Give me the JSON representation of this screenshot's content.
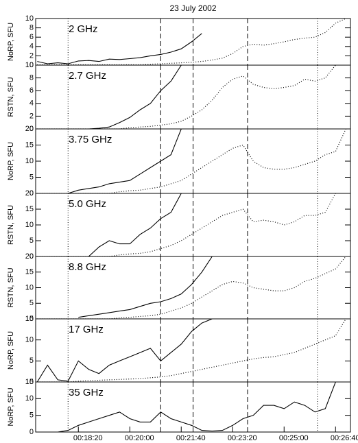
{
  "chart_data": [
    {
      "type": "line",
      "title": "23 July 2002",
      "label": "2 GHz",
      "ylabel": "NoRP, SFU",
      "x": [
        1020,
        1040,
        1060,
        1080,
        1100,
        1120,
        1140,
        1160,
        1180,
        1200,
        1220,
        1240,
        1260,
        1280,
        1300,
        1320,
        1340,
        1360,
        1380,
        1400,
        1420,
        1440,
        1460,
        1480,
        1500,
        1520,
        1540,
        1560,
        1580,
        1600,
        1620
      ],
      "series": [
        {
          "style": "solid",
          "color": "#000000",
          "values": [
            0.8,
            0.3,
            0.5,
            0.3,
            0.9,
            1.0,
            0.8,
            1.3,
            1.2,
            1.4,
            1.6,
            2.0,
            2.3,
            2.8,
            3.5,
            5.0,
            6.8,
            null,
            null,
            null,
            null,
            null,
            null,
            null,
            null,
            null,
            null,
            null,
            null,
            null,
            null
          ]
        },
        {
          "style": "dotted",
          "color": "#000000",
          "values": [
            0.1,
            0.1,
            0.1,
            0.1,
            0.1,
            0.1,
            0.1,
            0.1,
            0.1,
            0.1,
            0.1,
            0.2,
            0.3,
            0.4,
            0.5,
            0.6,
            0.8,
            1.1,
            1.5,
            2.5,
            4.0,
            4.5,
            4.3,
            4.6,
            5.0,
            5.5,
            5.8,
            6.0,
            7.0,
            9.0,
            10
          ]
        }
      ],
      "xlim": [
        1017,
        1629
      ],
      "ylim": [
        0,
        10
      ],
      "yticks": [
        0,
        2,
        4,
        6,
        8,
        10
      ],
      "vlines": [
        {
          "value": 1080,
          "style": "dotted"
        },
        {
          "value": 1260,
          "style": "dashed"
        },
        {
          "value": 1323,
          "style": "dashed"
        },
        {
          "value": 1429,
          "style": "dashed"
        },
        {
          "value": 1565,
          "style": "dotted"
        }
      ]
    },
    {
      "type": "line",
      "label": "2.7 GHz",
      "ylabel": "RSTN, SFU",
      "x": [
        1020,
        1040,
        1060,
        1080,
        1100,
        1120,
        1140,
        1160,
        1180,
        1200,
        1220,
        1240,
        1260,
        1280,
        1300,
        1320,
        1340,
        1360,
        1380,
        1400,
        1420,
        1440,
        1460,
        1480,
        1500,
        1520,
        1540,
        1560,
        1580,
        1600,
        1620
      ],
      "series": [
        {
          "style": "solid",
          "color": "#000000",
          "values": [
            0,
            0,
            0,
            0,
            0,
            0,
            0.1,
            0.3,
            1.0,
            1.8,
            3.0,
            4.0,
            6.0,
            7.5,
            10,
            null,
            null,
            null,
            null,
            null,
            null,
            null,
            null,
            null,
            null,
            null,
            null,
            null,
            null,
            null,
            null
          ]
        },
        {
          "style": "dotted",
          "color": "#000000",
          "values": [
            0,
            0,
            0,
            0,
            0,
            0,
            0,
            0,
            0,
            0.2,
            0.3,
            0.4,
            0.6,
            0.8,
            1.2,
            2.0,
            3.0,
            4.5,
            6.5,
            7.8,
            8.3,
            7.0,
            6.5,
            6.3,
            6.5,
            6.8,
            7.8,
            7.5,
            8.0,
            10,
            null
          ]
        }
      ],
      "xlim": [
        1017,
        1629
      ],
      "ylim": [
        0,
        10
      ],
      "yticks": [
        0,
        2,
        4,
        6,
        8,
        10
      ],
      "vlines": [
        {
          "value": 1080,
          "style": "dotted"
        },
        {
          "value": 1260,
          "style": "dashed"
        },
        {
          "value": 1323,
          "style": "dashed"
        },
        {
          "value": 1429,
          "style": "dashed"
        },
        {
          "value": 1565,
          "style": "dotted"
        }
      ]
    },
    {
      "type": "line",
      "label": "3.75 GHz",
      "ylabel": "NoRP, SFU",
      "x": [
        1020,
        1040,
        1060,
        1080,
        1100,
        1120,
        1140,
        1160,
        1180,
        1200,
        1220,
        1240,
        1260,
        1280,
        1300,
        1320,
        1340,
        1360,
        1380,
        1400,
        1420,
        1440,
        1460,
        1480,
        1500,
        1520,
        1540,
        1560,
        1580,
        1600,
        1620
      ],
      "series": [
        {
          "style": "solid",
          "color": "#000000",
          "values": [
            0,
            0,
            0,
            0,
            1,
            1.5,
            2,
            3,
            3.5,
            4,
            6,
            8,
            10,
            12,
            20,
            null,
            null,
            null,
            null,
            null,
            null,
            null,
            null,
            null,
            null,
            null,
            null,
            null,
            null,
            null,
            null
          ]
        },
        {
          "style": "dotted",
          "color": "#000000",
          "values": [
            0,
            0,
            0,
            0,
            0,
            0,
            0,
            0,
            0.5,
            0.8,
            1,
            1.5,
            2,
            3,
            4,
            6,
            8,
            10,
            12,
            14,
            15,
            10,
            8,
            7.5,
            7.5,
            8,
            9,
            10,
            12,
            13,
            20
          ]
        }
      ],
      "xlim": [
        1017,
        1629
      ],
      "ylim": [
        0,
        20
      ],
      "yticks": [
        0,
        5,
        10,
        15,
        20
      ],
      "vlines": [
        {
          "value": 1080,
          "style": "dotted"
        },
        {
          "value": 1260,
          "style": "dashed"
        },
        {
          "value": 1323,
          "style": "dashed"
        },
        {
          "value": 1429,
          "style": "dashed"
        },
        {
          "value": 1565,
          "style": "dotted"
        }
      ]
    },
    {
      "type": "line",
      "label": "5.0 GHz",
      "ylabel": "RSTN, SFU",
      "x": [
        1020,
        1040,
        1060,
        1080,
        1100,
        1120,
        1140,
        1160,
        1180,
        1200,
        1220,
        1240,
        1260,
        1280,
        1300,
        1320,
        1340,
        1360,
        1380,
        1400,
        1420,
        1440,
        1460,
        1480,
        1500,
        1520,
        1540,
        1560,
        1580,
        1600,
        1620
      ],
      "series": [
        {
          "style": "solid",
          "color": "#000000",
          "values": [
            null,
            null,
            null,
            null,
            null,
            0,
            3,
            5,
            4,
            4,
            7,
            9,
            12,
            14,
            20,
            null,
            null,
            null,
            null,
            null,
            null,
            null,
            null,
            null,
            null,
            null,
            null,
            null,
            null,
            null,
            null
          ]
        },
        {
          "style": "dotted",
          "color": "#000000",
          "values": [
            0,
            0,
            0,
            0,
            0,
            0,
            0,
            0,
            0.5,
            0.8,
            1,
            1.5,
            2.5,
            3.5,
            5,
            7,
            9,
            11,
            13,
            14,
            15,
            11,
            11.5,
            11,
            10,
            11,
            13,
            13,
            14,
            20,
            null
          ]
        }
      ],
      "xlim": [
        1017,
        1629
      ],
      "ylim": [
        0,
        20
      ],
      "yticks": [
        0,
        5,
        10,
        15,
        20
      ],
      "vlines": [
        {
          "value": 1080,
          "style": "dotted"
        },
        {
          "value": 1260,
          "style": "dashed"
        },
        {
          "value": 1323,
          "style": "dashed"
        },
        {
          "value": 1429,
          "style": "dashed"
        },
        {
          "value": 1565,
          "style": "dotted"
        }
      ]
    },
    {
      "type": "line",
      "label": "8.8 GHz",
      "ylabel": "RSTN, SFU",
      "x": [
        1020,
        1040,
        1060,
        1080,
        1100,
        1120,
        1140,
        1160,
        1180,
        1200,
        1220,
        1240,
        1260,
        1280,
        1300,
        1320,
        1340,
        1360,
        1380,
        1400,
        1420,
        1440,
        1460,
        1480,
        1500,
        1520,
        1540,
        1560,
        1580,
        1600,
        1620
      ],
      "series": [
        {
          "style": "solid",
          "color": "#000000",
          "values": [
            null,
            null,
            null,
            null,
            0.5,
            1,
            1.5,
            2,
            2.5,
            3,
            4,
            5,
            5.5,
            6.5,
            8,
            11,
            15,
            20,
            null,
            null,
            null,
            null,
            null,
            null,
            null,
            null,
            null,
            null,
            null,
            null,
            null
          ]
        },
        {
          "style": "dotted",
          "color": "#000000",
          "values": [
            0,
            0,
            0,
            0,
            0,
            0,
            0,
            0,
            0.3,
            0.5,
            0.8,
            1,
            1.5,
            2.5,
            3.5,
            5,
            7,
            9,
            11,
            12,
            11.5,
            10,
            9.5,
            9,
            9,
            10,
            12,
            13,
            14.5,
            16,
            20
          ]
        }
      ],
      "xlim": [
        1017,
        1629
      ],
      "ylim": [
        0,
        20
      ],
      "yticks": [
        0,
        5,
        10,
        15,
        20
      ],
      "vlines": [
        {
          "value": 1080,
          "style": "dotted"
        },
        {
          "value": 1260,
          "style": "dashed"
        },
        {
          "value": 1323,
          "style": "dashed"
        },
        {
          "value": 1429,
          "style": "dashed"
        },
        {
          "value": 1565,
          "style": "dotted"
        }
      ]
    },
    {
      "type": "line",
      "label": "17 GHz",
      "ylabel": "NoRP, SFU",
      "x": [
        1020,
        1040,
        1060,
        1080,
        1100,
        1120,
        1140,
        1160,
        1180,
        1200,
        1220,
        1240,
        1260,
        1280,
        1300,
        1320,
        1340,
        1360,
        1380,
        1400,
        1420,
        1440,
        1460,
        1480,
        1500,
        1520,
        1540,
        1560,
        1580,
        1600,
        1620
      ],
      "series": [
        {
          "style": "solid",
          "color": "#000000",
          "values": [
            0,
            4,
            0.5,
            0.2,
            5,
            3,
            2,
            4,
            5,
            6,
            7,
            8,
            5,
            7,
            9,
            12,
            14,
            15,
            null,
            null,
            null,
            null,
            null,
            null,
            null,
            null,
            null,
            null,
            null,
            null,
            null
          ]
        },
        {
          "style": "dotted",
          "color": "#000000",
          "values": [
            0,
            0,
            0,
            0,
            0.2,
            0.3,
            0.4,
            0.5,
            0.6,
            0.7,
            0.8,
            1,
            1.2,
            1.5,
            2,
            2.5,
            3,
            3.5,
            4,
            4.5,
            5,
            5.5,
            5.8,
            6,
            6.5,
            7,
            8,
            9,
            10,
            11,
            15
          ]
        }
      ],
      "xlim": [
        1017,
        1629
      ],
      "ylim": [
        0,
        15
      ],
      "yticks": [
        0,
        5,
        10,
        15
      ],
      "vlines": [
        {
          "value": 1080,
          "style": "dotted"
        },
        {
          "value": 1260,
          "style": "dashed"
        },
        {
          "value": 1323,
          "style": "dashed"
        },
        {
          "value": 1429,
          "style": "dashed"
        },
        {
          "value": 1565,
          "style": "dotted"
        }
      ]
    },
    {
      "type": "line",
      "label": "35 GHz",
      "ylabel": "NoRP, SFU",
      "x": [
        1020,
        1040,
        1060,
        1080,
        1100,
        1120,
        1140,
        1160,
        1180,
        1200,
        1220,
        1240,
        1260,
        1280,
        1300,
        1320,
        1340,
        1360,
        1380,
        1400,
        1420,
        1440,
        1460,
        1480,
        1500,
        1520,
        1540,
        1560,
        1580,
        1600,
        1620
      ],
      "series": [
        {
          "style": "solid",
          "color": "#000000",
          "values": [
            0,
            0,
            0,
            0.5,
            2,
            3,
            4,
            5,
            6,
            4,
            3,
            3,
            6,
            4,
            3,
            2,
            0.5,
            0.3,
            0.5,
            2,
            4,
            5,
            8,
            8,
            7,
            9,
            8,
            6,
            7,
            15,
            null
          ]
        }
      ],
      "xlim": [
        1017,
        1629
      ],
      "ylim": [
        0,
        15
      ],
      "yticks": [
        0,
        5,
        10,
        15
      ],
      "xticks": [
        {
          "value": 1100,
          "label": "00:18:20"
        },
        {
          "value": 1200,
          "label": "00:20:00"
        },
        {
          "value": 1300,
          "label": "00:21:40"
        },
        {
          "value": 1400,
          "label": "00:23:20"
        },
        {
          "value": 1500,
          "label": "00:25:00"
        },
        {
          "value": 1600,
          "label": "00:26:40"
        }
      ],
      "vlines": [
        {
          "value": 1080,
          "style": "dotted"
        },
        {
          "value": 1260,
          "style": "dashed"
        },
        {
          "value": 1323,
          "style": "dashed"
        },
        {
          "value": 1429,
          "style": "dashed"
        },
        {
          "value": 1565,
          "style": "dotted"
        }
      ]
    }
  ]
}
